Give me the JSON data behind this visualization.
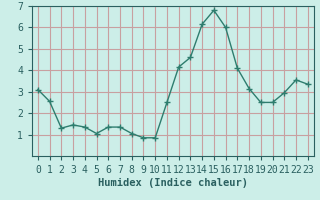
{
  "x": [
    0,
    1,
    2,
    3,
    4,
    5,
    6,
    7,
    8,
    9,
    10,
    11,
    12,
    13,
    14,
    15,
    16,
    17,
    18,
    19,
    20,
    21,
    22,
    23
  ],
  "y": [
    3.1,
    2.55,
    1.3,
    1.45,
    1.35,
    1.05,
    1.35,
    1.35,
    1.05,
    0.85,
    0.85,
    2.5,
    4.15,
    4.6,
    6.15,
    6.8,
    6.0,
    4.1,
    3.15,
    2.5,
    2.5,
    2.95,
    3.55,
    3.35
  ],
  "line_color": "#2e7d6e",
  "marker": "+",
  "markersize": 4,
  "linewidth": 1.0,
  "background_color": "#cceee8",
  "grid_color": "#c8a0a0",
  "xlabel": "Humidex (Indice chaleur)",
  "xlabel_fontsize": 7.5,
  "tick_label_fontsize": 7,
  "xlim": [
    -0.5,
    23.5
  ],
  "ylim": [
    0,
    7
  ],
  "yticks": [
    1,
    2,
    3,
    4,
    5,
    6,
    7
  ],
  "xticks": [
    0,
    1,
    2,
    3,
    4,
    5,
    6,
    7,
    8,
    9,
    10,
    11,
    12,
    13,
    14,
    15,
    16,
    17,
    18,
    19,
    20,
    21,
    22,
    23
  ],
  "axis_color": "#2a6060",
  "spine_color": "#2a6060"
}
